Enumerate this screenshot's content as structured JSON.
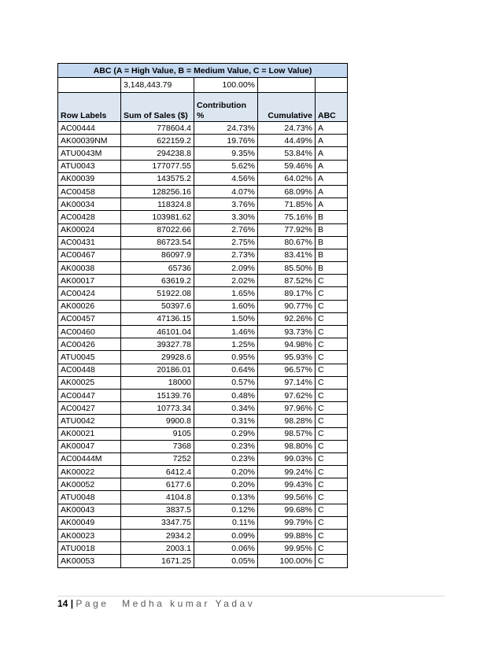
{
  "table": {
    "title": "ABC (A = High Value, B = Medium Value, C = Low Value)",
    "totals": [
      "3,148,443.79",
      "100.00%"
    ],
    "columns": [
      "Row Labels",
      "Sum of Sales ($)",
      "Contribution %",
      "Cumulative",
      "ABC"
    ],
    "rows": [
      [
        "AC00444",
        "778604.4",
        "24.73%",
        "24.73%",
        "A"
      ],
      [
        "AK00039NM",
        "622159.2",
        "19.76%",
        "44.49%",
        "A"
      ],
      [
        "ATU0043M",
        "294238.8",
        "9.35%",
        "53.84%",
        "A"
      ],
      [
        "ATU0043",
        "177077.55",
        "5.62%",
        "59.46%",
        "A"
      ],
      [
        "AK00039",
        "143575.2",
        "4.56%",
        "64.02%",
        "A"
      ],
      [
        "AC00458",
        "128256.16",
        "4.07%",
        "68.09%",
        "A"
      ],
      [
        "AK00034",
        "118324.8",
        "3.76%",
        "71.85%",
        "A"
      ],
      [
        "AC00428",
        "103981.62",
        "3.30%",
        "75.16%",
        "B"
      ],
      [
        "AK00024",
        "87022.66",
        "2.76%",
        "77.92%",
        "B"
      ],
      [
        "AC00431",
        "86723.54",
        "2.75%",
        "80.67%",
        "B"
      ],
      [
        "AC00467",
        "86097.9",
        "2.73%",
        "83.41%",
        "B"
      ],
      [
        "AK00038",
        "65736",
        "2.09%",
        "85.50%",
        "B"
      ],
      [
        "AK00017",
        "63619.2",
        "2.02%",
        "87.52%",
        "C"
      ],
      [
        "AC00424",
        "51922.08",
        "1.65%",
        "89.17%",
        "C"
      ],
      [
        "AK00026",
        "50397.6",
        "1.60%",
        "90.77%",
        "C"
      ],
      [
        "AC00457",
        "47136.15",
        "1.50%",
        "92.26%",
        "C"
      ],
      [
        "AC00460",
        "46101.04",
        "1.46%",
        "93.73%",
        "C"
      ],
      [
        "AC00426",
        "39327.78",
        "1.25%",
        "94.98%",
        "C"
      ],
      [
        "ATU0045",
        "29928.6",
        "0.95%",
        "95.93%",
        "C"
      ],
      [
        "AC00448",
        "20186.01",
        "0.64%",
        "96.57%",
        "C"
      ],
      [
        "AK00025",
        "18000",
        "0.57%",
        "97.14%",
        "C"
      ],
      [
        "AC00447",
        "15139.76",
        "0.48%",
        "97.62%",
        "C"
      ],
      [
        "AC00427",
        "10773.34",
        "0.34%",
        "97.96%",
        "C"
      ],
      [
        "ATU0042",
        "9900.8",
        "0.31%",
        "98.28%",
        "C"
      ],
      [
        "AK00021",
        "9105",
        "0.29%",
        "98.57%",
        "C"
      ],
      [
        "AK00047",
        "7368",
        "0.23%",
        "98.80%",
        "C"
      ],
      [
        "AC00444M",
        "7252",
        "0.23%",
        "99.03%",
        "C"
      ],
      [
        "AK00022",
        "6412.4",
        "0.20%",
        "99.24%",
        "C"
      ],
      [
        "AK00052",
        "6177.6",
        "0.20%",
        "99.43%",
        "C"
      ],
      [
        "ATU0048",
        "4104.8",
        "0.13%",
        "99.56%",
        "C"
      ],
      [
        "AK00043",
        "3837.5",
        "0.12%",
        "99.68%",
        "C"
      ],
      [
        "AK00049",
        "3347.75",
        "0.11%",
        "99.79%",
        "C"
      ],
      [
        "AK00023",
        "2934.2",
        "0.09%",
        "99.88%",
        "C"
      ],
      [
        "ATU0018",
        "2003.1",
        "0.06%",
        "99.95%",
        "C"
      ],
      [
        "AK00053",
        "1671.25",
        "0.05%",
        "100.00%",
        "C"
      ]
    ]
  },
  "footer": {
    "page_number": "14",
    "page_label": "Page",
    "author": "Medha kumar Yadav"
  }
}
